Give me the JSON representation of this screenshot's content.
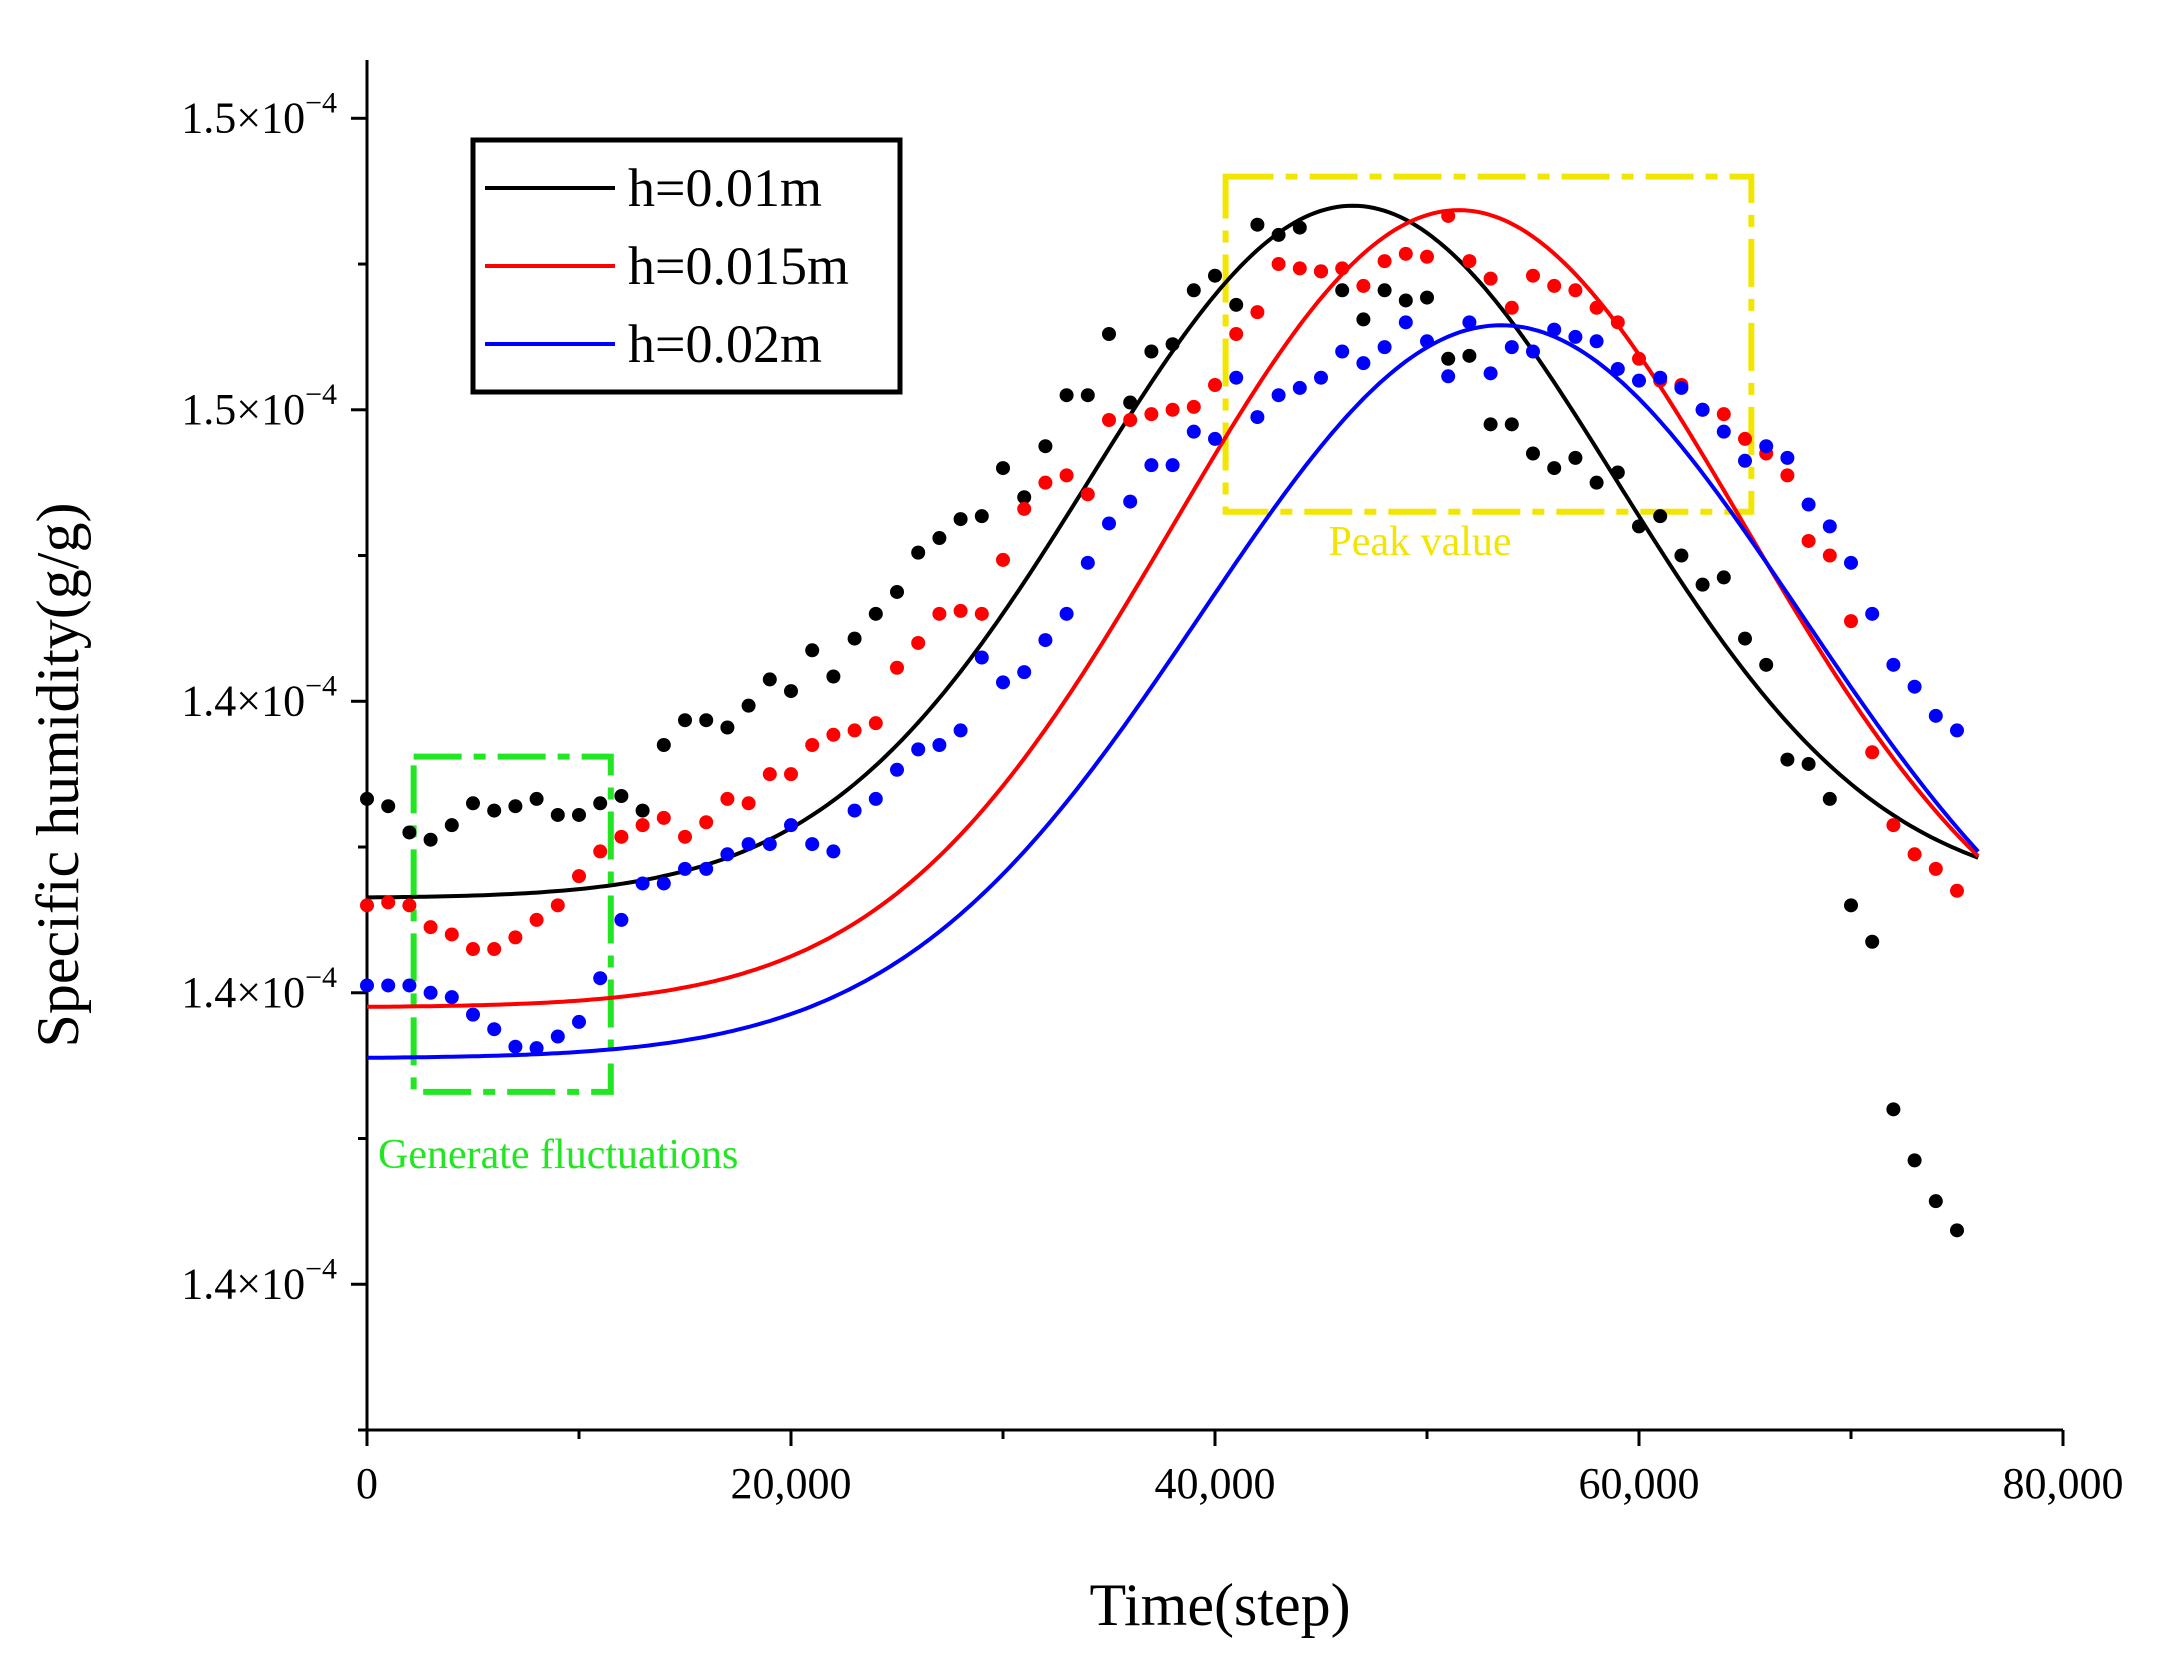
{
  "chart_data": {
    "type": "scatter",
    "xlabel": "Time(step)",
    "ylabel": "Specific humidity(g/g)",
    "xlim": [
      0,
      80000
    ],
    "ylim": [
      0,
      9.4
    ],
    "x_ticks": [
      0,
      20000,
      40000,
      60000,
      80000
    ],
    "x_tick_labels": [
      "0",
      "20,000",
      "40,000",
      "60,000",
      "80,000"
    ],
    "y_ticks": [
      1,
      3,
      5,
      7,
      9
    ],
    "y_tick_base": "1.4×10",
    "y_tick_labels": [
      {
        "base": "1.4×10",
        "exp": "−4"
      },
      {
        "base": "1.4×10",
        "exp": "−4"
      },
      {
        "base": "1.4×10",
        "exp": "−4"
      },
      {
        "base": "1.5×10",
        "exp": "−4"
      },
      {
        "base": "1.5×10",
        "exp": "−4"
      }
    ],
    "legend_position": "top-left",
    "series": [
      {
        "name": "h=0.01m",
        "color": "#000000",
        "fit": {
          "base": 3.65,
          "amplitude": 4.75,
          "peak_x": 46500,
          "width": 17500,
          "x_end": 76000
        },
        "points": [
          [
            0,
            4.33
          ],
          [
            1000,
            4.28
          ],
          [
            2000,
            4.1
          ],
          [
            3000,
            4.05
          ],
          [
            4000,
            4.15
          ],
          [
            5000,
            4.3
          ],
          [
            6000,
            4.25
          ],
          [
            7000,
            4.28
          ],
          [
            8000,
            4.33
          ],
          [
            9000,
            4.22
          ],
          [
            10000,
            4.22
          ],
          [
            11000,
            4.3
          ],
          [
            12000,
            4.35
          ],
          [
            13000,
            4.25
          ],
          [
            14000,
            4.7
          ],
          [
            15000,
            4.87
          ],
          [
            16000,
            4.87
          ],
          [
            17000,
            4.82
          ],
          [
            18000,
            4.97
          ],
          [
            19000,
            5.15
          ],
          [
            20000,
            5.07
          ],
          [
            21000,
            5.35
          ],
          [
            22000,
            5.17
          ],
          [
            23000,
            5.43
          ],
          [
            24000,
            5.6
          ],
          [
            25000,
            5.75
          ],
          [
            26000,
            6.02
          ],
          [
            27000,
            6.12
          ],
          [
            28000,
            6.25
          ],
          [
            29000,
            6.27
          ],
          [
            30000,
            6.6
          ],
          [
            31000,
            6.4
          ],
          [
            32000,
            6.75
          ],
          [
            33000,
            7.1
          ],
          [
            34000,
            7.1
          ],
          [
            35000,
            7.52
          ],
          [
            36000,
            7.05
          ],
          [
            37000,
            7.4
          ],
          [
            38000,
            7.45
          ],
          [
            39000,
            7.82
          ],
          [
            40000,
            7.92
          ],
          [
            41000,
            7.72
          ],
          [
            42000,
            8.27
          ],
          [
            43000,
            8.2
          ],
          [
            44000,
            8.25
          ],
          [
            45000,
            7.95
          ],
          [
            46000,
            7.82
          ],
          [
            47000,
            7.62
          ],
          [
            48000,
            7.82
          ],
          [
            49000,
            7.75
          ],
          [
            50000,
            7.77
          ],
          [
            51000,
            7.35
          ],
          [
            52000,
            7.37
          ],
          [
            53000,
            6.9
          ],
          [
            54000,
            6.9
          ],
          [
            55000,
            6.7
          ],
          [
            56000,
            6.6
          ],
          [
            57000,
            6.67
          ],
          [
            58000,
            6.5
          ],
          [
            59000,
            6.57
          ],
          [
            60000,
            6.2
          ],
          [
            61000,
            6.27
          ],
          [
            62000,
            6.0
          ],
          [
            63000,
            5.8
          ],
          [
            64000,
            5.85
          ],
          [
            65000,
            5.43
          ],
          [
            66000,
            5.25
          ],
          [
            67000,
            4.6
          ],
          [
            68000,
            4.57
          ],
          [
            69000,
            4.33
          ],
          [
            70000,
            3.6
          ],
          [
            71000,
            3.35
          ],
          [
            72000,
            2.2
          ],
          [
            73000,
            1.85
          ],
          [
            74000,
            1.57
          ],
          [
            75000,
            1.37
          ]
        ]
      },
      {
        "name": "h=0.015m",
        "color": "#ff0000",
        "fit": {
          "base": 2.9,
          "amplitude": 5.47,
          "peak_x": 51500,
          "width": 19000,
          "x_end": 76000
        },
        "points": [
          [
            0,
            3.6
          ],
          [
            1000,
            3.62
          ],
          [
            2000,
            3.6
          ],
          [
            3000,
            3.45
          ],
          [
            4000,
            3.4
          ],
          [
            5000,
            3.3
          ],
          [
            6000,
            3.3
          ],
          [
            7000,
            3.38
          ],
          [
            8000,
            3.5
          ],
          [
            9000,
            3.6
          ],
          [
            10000,
            3.8
          ],
          [
            11000,
            3.97
          ],
          [
            12000,
            4.07
          ],
          [
            13000,
            4.15
          ],
          [
            14000,
            4.2
          ],
          [
            15000,
            4.07
          ],
          [
            16000,
            4.17
          ],
          [
            17000,
            4.33
          ],
          [
            18000,
            4.3
          ],
          [
            19000,
            4.5
          ],
          [
            20000,
            4.5
          ],
          [
            21000,
            4.7
          ],
          [
            22000,
            4.77
          ],
          [
            23000,
            4.8
          ],
          [
            24000,
            4.85
          ],
          [
            25000,
            5.23
          ],
          [
            26000,
            5.4
          ],
          [
            27000,
            5.6
          ],
          [
            28000,
            5.62
          ],
          [
            29000,
            5.6
          ],
          [
            30000,
            5.97
          ],
          [
            31000,
            6.32
          ],
          [
            32000,
            6.5
          ],
          [
            33000,
            6.55
          ],
          [
            34000,
            6.42
          ],
          [
            35000,
            6.93
          ],
          [
            36000,
            6.93
          ],
          [
            37000,
            6.97
          ],
          [
            38000,
            7.0
          ],
          [
            39000,
            7.02
          ],
          [
            40000,
            7.17
          ],
          [
            41000,
            7.52
          ],
          [
            42000,
            7.67
          ],
          [
            43000,
            8.0
          ],
          [
            44000,
            7.97
          ],
          [
            45000,
            7.95
          ],
          [
            46000,
            7.97
          ],
          [
            47000,
            7.85
          ],
          [
            48000,
            8.02
          ],
          [
            49000,
            8.07
          ],
          [
            50000,
            8.05
          ],
          [
            51000,
            8.33
          ],
          [
            52000,
            8.02
          ],
          [
            53000,
            7.9
          ],
          [
            54000,
            7.7
          ],
          [
            55000,
            7.92
          ],
          [
            56000,
            7.85
          ],
          [
            57000,
            7.82
          ],
          [
            58000,
            7.7
          ],
          [
            59000,
            7.6
          ],
          [
            60000,
            7.35
          ],
          [
            61000,
            7.2
          ],
          [
            62000,
            7.17
          ],
          [
            63000,
            7.0
          ],
          [
            64000,
            6.97
          ],
          [
            65000,
            6.8
          ],
          [
            66000,
            6.7
          ],
          [
            67000,
            6.55
          ],
          [
            68000,
            6.1
          ],
          [
            69000,
            6.0
          ],
          [
            70000,
            5.55
          ],
          [
            71000,
            4.65
          ],
          [
            72000,
            4.15
          ],
          [
            73000,
            3.95
          ],
          [
            74000,
            3.85
          ],
          [
            75000,
            3.7
          ]
        ]
      },
      {
        "name": "h=0.02m",
        "color": "#0000ff",
        "fit": {
          "base": 2.55,
          "amplitude": 5.03,
          "peak_x": 53500,
          "width": 20000,
          "x_end": 76000
        },
        "points": [
          [
            0,
            3.05
          ],
          [
            1000,
            3.05
          ],
          [
            2000,
            3.05
          ],
          [
            3000,
            3.0
          ],
          [
            4000,
            2.97
          ],
          [
            5000,
            2.85
          ],
          [
            6000,
            2.75
          ],
          [
            7000,
            2.63
          ],
          [
            8000,
            2.62
          ],
          [
            9000,
            2.7
          ],
          [
            10000,
            2.8
          ],
          [
            11000,
            3.1
          ],
          [
            12000,
            3.5
          ],
          [
            13000,
            3.75
          ],
          [
            14000,
            3.75
          ],
          [
            15000,
            3.85
          ],
          [
            16000,
            3.85
          ],
          [
            17000,
            3.95
          ],
          [
            18000,
            4.02
          ],
          [
            19000,
            4.02
          ],
          [
            20000,
            4.15
          ],
          [
            21000,
            4.02
          ],
          [
            22000,
            3.97
          ],
          [
            23000,
            4.25
          ],
          [
            24000,
            4.33
          ],
          [
            25000,
            4.53
          ],
          [
            26000,
            4.67
          ],
          [
            27000,
            4.7
          ],
          [
            28000,
            4.8
          ],
          [
            29000,
            5.3
          ],
          [
            30000,
            5.13
          ],
          [
            31000,
            5.2
          ],
          [
            32000,
            5.42
          ],
          [
            33000,
            5.6
          ],
          [
            34000,
            5.95
          ],
          [
            35000,
            6.22
          ],
          [
            36000,
            6.37
          ],
          [
            37000,
            6.62
          ],
          [
            38000,
            6.62
          ],
          [
            39000,
            6.85
          ],
          [
            40000,
            6.8
          ],
          [
            41000,
            7.22
          ],
          [
            42000,
            6.95
          ],
          [
            43000,
            7.1
          ],
          [
            44000,
            7.15
          ],
          [
            45000,
            7.22
          ],
          [
            46000,
            7.4
          ],
          [
            47000,
            7.32
          ],
          [
            48000,
            7.43
          ],
          [
            49000,
            7.6
          ],
          [
            50000,
            7.47
          ],
          [
            51000,
            7.23
          ],
          [
            52000,
            7.6
          ],
          [
            53000,
            7.25
          ],
          [
            54000,
            7.43
          ],
          [
            55000,
            7.4
          ],
          [
            56000,
            7.55
          ],
          [
            57000,
            7.5
          ],
          [
            58000,
            7.47
          ],
          [
            59000,
            7.28
          ],
          [
            60000,
            7.2
          ],
          [
            61000,
            7.22
          ],
          [
            62000,
            7.15
          ],
          [
            63000,
            7.0
          ],
          [
            64000,
            6.85
          ],
          [
            65000,
            6.65
          ],
          [
            66000,
            6.75
          ],
          [
            67000,
            6.67
          ],
          [
            68000,
            6.35
          ],
          [
            69000,
            6.2
          ],
          [
            70000,
            5.95
          ],
          [
            71000,
            5.6
          ],
          [
            72000,
            5.25
          ],
          [
            73000,
            5.1
          ],
          [
            74000,
            4.9
          ],
          [
            75000,
            4.8
          ]
        ]
      }
    ],
    "annotations": [
      {
        "label": "Generate fluctuations",
        "color": "#22e622",
        "box": {
          "x": [
            2200,
            11500
          ],
          "y": [
            2.32,
            4.62
          ]
        }
      },
      {
        "label": "Peak value",
        "color": "#f2e600",
        "box": {
          "x": [
            40500,
            65300
          ],
          "y": [
            6.3,
            8.6
          ]
        }
      }
    ]
  }
}
